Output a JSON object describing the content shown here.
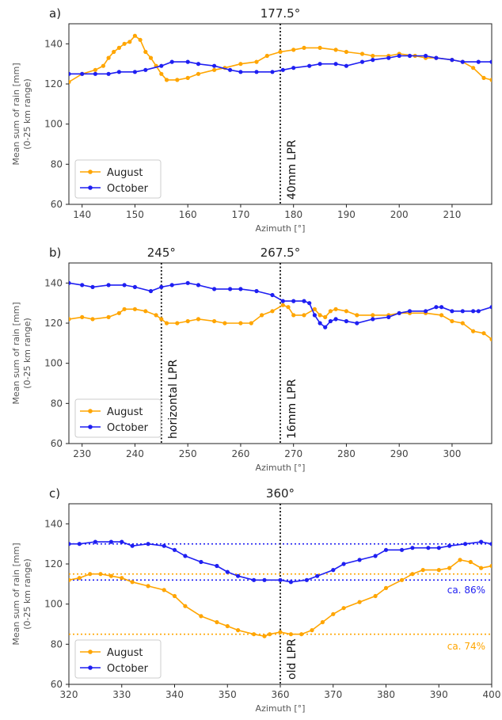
{
  "chart_data": [
    {
      "type": "line",
      "panel_label": "a)",
      "vline": {
        "x": 177.5,
        "top_label": "177.5°",
        "side_label": "40mm LPR"
      },
      "xlabel": "Azimuth [°]",
      "ylabel": [
        "Mean sum of rain [mm]",
        "(0-25 km range)"
      ],
      "xlim": [
        137.5,
        217.5
      ],
      "ylim": [
        60,
        150
      ],
      "xticks": [
        140,
        150,
        160,
        170,
        180,
        190,
        200,
        210
      ],
      "xtick_labels": [
        "140",
        "150",
        "160",
        "170",
        "180",
        "190",
        "200",
        "210"
      ],
      "yticks": [
        60,
        80,
        100,
        120,
        140
      ],
      "ytick_labels": [
        "60",
        "80",
        "100",
        "120",
        "140"
      ],
      "legend": {
        "placement": "lower-left"
      },
      "series": [
        {
          "name": "August",
          "color": "#FFA500",
          "points": [
            [
              137.5,
              121
            ],
            [
              140,
              125
            ],
            [
              142.5,
              127
            ],
            [
              144,
              129
            ],
            [
              145,
              133
            ],
            [
              146,
              136
            ],
            [
              147,
              138
            ],
            [
              148,
              140
            ],
            [
              149,
              141
            ],
            [
              150,
              144
            ],
            [
              151,
              142
            ],
            [
              152,
              136
            ],
            [
              153,
              133
            ],
            [
              154,
              129
            ],
            [
              155,
              125
            ],
            [
              156,
              122
            ],
            [
              158,
              122
            ],
            [
              160,
              123
            ],
            [
              162,
              125
            ],
            [
              165,
              127
            ],
            [
              167,
              128
            ],
            [
              170,
              130
            ],
            [
              173,
              131
            ],
            [
              175,
              134
            ],
            [
              177.5,
              136
            ],
            [
              180,
              137
            ],
            [
              182,
              138
            ],
            [
              185,
              138
            ],
            [
              188,
              137
            ],
            [
              190,
              136
            ],
            [
              193,
              135
            ],
            [
              195,
              134
            ],
            [
              198,
              134
            ],
            [
              200,
              135
            ],
            [
              203,
              134
            ],
            [
              205,
              133
            ],
            [
              207,
              133
            ],
            [
              210,
              132
            ],
            [
              212,
              131
            ],
            [
              214,
              128
            ],
            [
              216,
              123
            ],
            [
              217.5,
              122
            ]
          ]
        },
        {
          "name": "October",
          "color": "#1F1FF2",
          "points": [
            [
              137.5,
              125
            ],
            [
              140,
              125
            ],
            [
              142.5,
              125
            ],
            [
              145,
              125
            ],
            [
              147,
              126
            ],
            [
              150,
              126
            ],
            [
              152,
              127
            ],
            [
              155,
              129
            ],
            [
              157,
              131
            ],
            [
              160,
              131
            ],
            [
              162,
              130
            ],
            [
              165,
              129
            ],
            [
              168,
              127
            ],
            [
              170,
              126
            ],
            [
              173,
              126
            ],
            [
              176,
              126
            ],
            [
              178,
              127
            ],
            [
              180,
              128
            ],
            [
              183,
              129
            ],
            [
              185,
              130
            ],
            [
              188,
              130
            ],
            [
              190,
              129
            ],
            [
              193,
              131
            ],
            [
              195,
              132
            ],
            [
              198,
              133
            ],
            [
              200,
              134
            ],
            [
              202,
              134
            ],
            [
              205,
              134
            ],
            [
              207,
              133
            ],
            [
              210,
              132
            ],
            [
              212,
              131
            ],
            [
              215,
              131
            ],
            [
              217.5,
              131
            ]
          ]
        }
      ],
      "hlines": [],
      "annotations": []
    },
    {
      "type": "line",
      "panel_label": "b)",
      "vlines": [
        {
          "x": 245,
          "top_label": "245°",
          "side_label": "horizontal LPR"
        },
        {
          "x": 267.5,
          "top_label": "267.5°",
          "side_label": "16mm LPR"
        }
      ],
      "xlabel": "Azimuth [°]",
      "ylabel": [
        "Mean sum of rain [mm]",
        "(0-25 km range)"
      ],
      "xlim": [
        227.5,
        307.5
      ],
      "ylim": [
        60,
        150
      ],
      "xticks": [
        230,
        240,
        250,
        260,
        270,
        280,
        290,
        300
      ],
      "xtick_labels": [
        "230",
        "240",
        "250",
        "260",
        "270",
        "280",
        "290",
        "300"
      ],
      "yticks": [
        60,
        80,
        100,
        120,
        140
      ],
      "ytick_labels": [
        "60",
        "80",
        "100",
        "120",
        "140"
      ],
      "legend": {
        "placement": "lower-left"
      },
      "series": [
        {
          "name": "August",
          "color": "#FFA500",
          "points": [
            [
              227.5,
              122
            ],
            [
              230,
              123
            ],
            [
              232,
              122
            ],
            [
              235,
              123
            ],
            [
              237,
              125
            ],
            [
              238,
              127
            ],
            [
              240,
              127
            ],
            [
              242,
              126
            ],
            [
              244,
              124
            ],
            [
              245,
              122
            ],
            [
              246,
              120
            ],
            [
              248,
              120
            ],
            [
              250,
              121
            ],
            [
              252,
              122
            ],
            [
              255,
              121
            ],
            [
              257,
              120
            ],
            [
              260,
              120
            ],
            [
              262,
              120
            ],
            [
              264,
              124
            ],
            [
              266,
              126
            ],
            [
              268,
              129
            ],
            [
              269,
              128
            ],
            [
              270,
              124
            ],
            [
              272,
              124
            ],
            [
              274,
              127
            ],
            [
              275,
              124
            ],
            [
              276,
              123
            ],
            [
              277,
              126
            ],
            [
              278,
              127
            ],
            [
              280,
              126
            ],
            [
              282,
              124
            ],
            [
              285,
              124
            ],
            [
              288,
              124
            ],
            [
              290,
              125
            ],
            [
              292,
              125
            ],
            [
              295,
              125
            ],
            [
              298,
              124
            ],
            [
              300,
              121
            ],
            [
              302,
              120
            ],
            [
              304,
              116
            ],
            [
              306,
              115
            ],
            [
              307.5,
              112
            ]
          ]
        },
        {
          "name": "October",
          "color": "#1F1FF2",
          "points": [
            [
              227.5,
              140
            ],
            [
              230,
              139
            ],
            [
              232,
              138
            ],
            [
              235,
              139
            ],
            [
              238,
              139
            ],
            [
              240,
              138
            ],
            [
              243,
              136
            ],
            [
              245,
              138
            ],
            [
              247,
              139
            ],
            [
              250,
              140
            ],
            [
              252,
              139
            ],
            [
              255,
              137
            ],
            [
              258,
              137
            ],
            [
              260,
              137
            ],
            [
              263,
              136
            ],
            [
              266,
              134
            ],
            [
              268,
              131
            ],
            [
              270,
              131
            ],
            [
              272,
              131
            ],
            [
              273,
              130
            ],
            [
              274,
              124
            ],
            [
              275,
              120
            ],
            [
              276,
              118
            ],
            [
              277,
              121
            ],
            [
              278,
              122
            ],
            [
              280,
              121
            ],
            [
              282,
              120
            ],
            [
              285,
              122
            ],
            [
              288,
              123
            ],
            [
              290,
              125
            ],
            [
              292,
              126
            ],
            [
              295,
              126
            ],
            [
              297,
              128
            ],
            [
              298,
              128
            ],
            [
              300,
              126
            ],
            [
              302,
              126
            ],
            [
              304,
              126
            ],
            [
              305,
              126
            ],
            [
              307.5,
              128
            ]
          ]
        }
      ],
      "hlines": [],
      "annotations": []
    },
    {
      "type": "line",
      "panel_label": "c)",
      "vline": {
        "x": 360,
        "top_label": "360°",
        "side_label": "old LPR"
      },
      "xlabel": "Azimuth [°]",
      "ylabel": [
        "Mean sum of rain [mm]",
        "(0-25 km range)"
      ],
      "xlim": [
        320,
        400
      ],
      "ylim": [
        60,
        150
      ],
      "xticks": [
        320,
        330,
        340,
        350,
        360,
        370,
        380,
        390,
        400
      ],
      "xtick_labels": [
        "320",
        "330",
        "340",
        "350",
        "360",
        "370",
        "380",
        "390",
        "400"
      ],
      "yticks": [
        60,
        80,
        100,
        120,
        140
      ],
      "ytick_labels": [
        "60",
        "80",
        "100",
        "120",
        "140"
      ],
      "legend": {
        "placement": "lower-left"
      },
      "series": [
        {
          "name": "August",
          "color": "#FFA500",
          "points": [
            [
              320,
              112
            ],
            [
              322,
              113
            ],
            [
              324,
              115
            ],
            [
              326,
              115
            ],
            [
              328,
              114
            ],
            [
              330,
              113
            ],
            [
              332,
              111
            ],
            [
              335,
              109
            ],
            [
              338,
              107
            ],
            [
              340,
              104
            ],
            [
              342,
              99
            ],
            [
              345,
              94
            ],
            [
              348,
              91
            ],
            [
              350,
              89
            ],
            [
              352,
              87
            ],
            [
              355,
              85
            ],
            [
              357,
              84
            ],
            [
              358,
              85
            ],
            [
              360,
              86
            ],
            [
              362,
              85
            ],
            [
              364,
              85
            ],
            [
              366,
              87
            ],
            [
              368,
              91
            ],
            [
              370,
              95
            ],
            [
              372,
              98
            ],
            [
              375,
              101
            ],
            [
              378,
              104
            ],
            [
              380,
              108
            ],
            [
              383,
              112
            ],
            [
              385,
              115
            ],
            [
              387,
              117
            ],
            [
              390,
              117
            ],
            [
              392,
              118
            ],
            [
              394,
              122
            ],
            [
              396,
              121
            ],
            [
              398,
              118
            ],
            [
              400,
              119
            ]
          ]
        },
        {
          "name": "October",
          "color": "#1F1FF2",
          "points": [
            [
              320,
              130
            ],
            [
              322,
              130
            ],
            [
              325,
              131
            ],
            [
              328,
              131
            ],
            [
              330,
              131
            ],
            [
              332,
              129
            ],
            [
              335,
              130
            ],
            [
              338,
              129
            ],
            [
              340,
              127
            ],
            [
              342,
              124
            ],
            [
              345,
              121
            ],
            [
              348,
              119
            ],
            [
              350,
              116
            ],
            [
              352,
              114
            ],
            [
              355,
              112
            ],
            [
              357,
              112
            ],
            [
              360,
              112
            ],
            [
              362,
              111
            ],
            [
              365,
              112
            ],
            [
              367,
              114
            ],
            [
              370,
              117
            ],
            [
              372,
              120
            ],
            [
              375,
              122
            ],
            [
              378,
              124
            ],
            [
              380,
              127
            ],
            [
              383,
              127
            ],
            [
              385,
              128
            ],
            [
              388,
              128
            ],
            [
              390,
              128
            ],
            [
              392,
              129
            ],
            [
              395,
              130
            ],
            [
              398,
              131
            ],
            [
              400,
              130
            ]
          ]
        }
      ],
      "hlines": [
        {
          "y": 130,
          "color": "#1F1FF2"
        },
        {
          "y": 112,
          "color": "#1F1FF2"
        },
        {
          "y": 115,
          "color": "#FFA500"
        },
        {
          "y": 85,
          "color": "#FFA500"
        }
      ],
      "annotations": [
        {
          "text": "ca. 86%",
          "color": "#1F1FF2",
          "y": 107
        },
        {
          "text": "ca. 74%",
          "color": "#FFA500",
          "y": 79
        }
      ]
    }
  ]
}
